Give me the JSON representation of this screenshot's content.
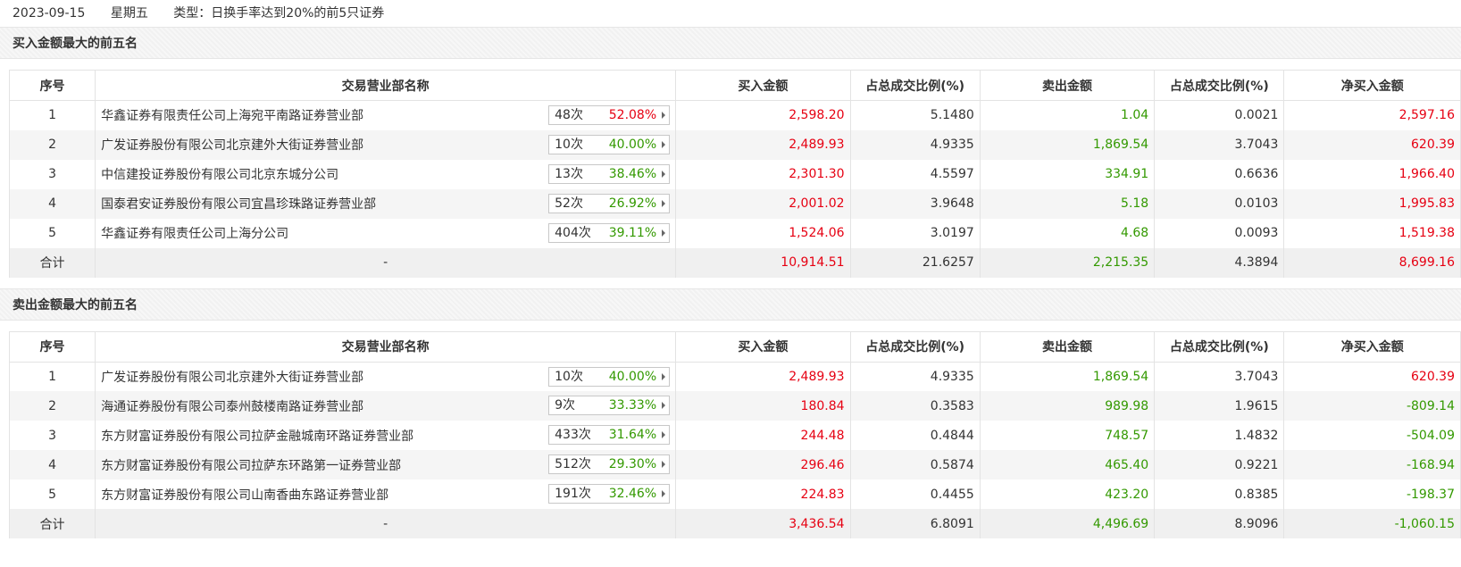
{
  "header": {
    "date": "2023-09-15",
    "weekday": "星期五",
    "type": "类型：日换手率达到20%的前5只证券"
  },
  "columns": [
    "序号",
    "交易营业部名称",
    "买入金额",
    "占总成交比例(%)",
    "卖出金额",
    "占总成交比例(%)",
    "净买入金额"
  ],
  "buy_section": {
    "title": "买入金额最大的前五名",
    "rows": [
      {
        "idx": "1",
        "name": "华鑫证券有限责任公司上海宛平南路证券营业部",
        "count": "48次",
        "pct": "52.08%",
        "pct_color": "red",
        "buy": "2,598.20",
        "buy_ratio": "5.1480",
        "sell": "1.04",
        "sell_ratio": "0.0021",
        "net": "2,597.16",
        "net_color": "red"
      },
      {
        "idx": "2",
        "name": "广发证券股份有限公司北京建外大街证券营业部",
        "count": "10次",
        "pct": "40.00%",
        "pct_color": "green",
        "buy": "2,489.93",
        "buy_ratio": "4.9335",
        "sell": "1,869.54",
        "sell_ratio": "3.7043",
        "net": "620.39",
        "net_color": "red"
      },
      {
        "idx": "3",
        "name": "中信建投证券股份有限公司北京东城分公司",
        "count": "13次",
        "pct": "38.46%",
        "pct_color": "green",
        "buy": "2,301.30",
        "buy_ratio": "4.5597",
        "sell": "334.91",
        "sell_ratio": "0.6636",
        "net": "1,966.40",
        "net_color": "red"
      },
      {
        "idx": "4",
        "name": "国泰君安证券股份有限公司宜昌珍珠路证券营业部",
        "count": "52次",
        "pct": "26.92%",
        "pct_color": "green",
        "buy": "2,001.02",
        "buy_ratio": "3.9648",
        "sell": "5.18",
        "sell_ratio": "0.0103",
        "net": "1,995.83",
        "net_color": "red"
      },
      {
        "idx": "5",
        "name": "华鑫证券有限责任公司上海分公司",
        "count": "404次",
        "pct": "39.11%",
        "pct_color": "green",
        "buy": "1,524.06",
        "buy_ratio": "3.0197",
        "sell": "4.68",
        "sell_ratio": "0.0093",
        "net": "1,519.38",
        "net_color": "red"
      }
    ],
    "total": {
      "label": "合计",
      "name": "-",
      "buy": "10,914.51",
      "buy_ratio": "21.6257",
      "sell": "2,215.35",
      "sell_ratio": "4.3894",
      "net": "8,699.16",
      "net_color": "red"
    }
  },
  "sell_section": {
    "title": "卖出金额最大的前五名",
    "rows": [
      {
        "idx": "1",
        "name": "广发证券股份有限公司北京建外大街证券营业部",
        "count": "10次",
        "pct": "40.00%",
        "pct_color": "green",
        "buy": "2,489.93",
        "buy_ratio": "4.9335",
        "sell": "1,869.54",
        "sell_ratio": "3.7043",
        "net": "620.39",
        "net_color": "red"
      },
      {
        "idx": "2",
        "name": "海通证券股份有限公司泰州鼓楼南路证券营业部",
        "count": "9次",
        "pct": "33.33%",
        "pct_color": "green",
        "buy": "180.84",
        "buy_ratio": "0.3583",
        "sell": "989.98",
        "sell_ratio": "1.9615",
        "net": "-809.14",
        "net_color": "green"
      },
      {
        "idx": "3",
        "name": "东方财富证券股份有限公司拉萨金融城南环路证券营业部",
        "count": "433次",
        "pct": "31.64%",
        "pct_color": "green",
        "buy": "244.48",
        "buy_ratio": "0.4844",
        "sell": "748.57",
        "sell_ratio": "1.4832",
        "net": "-504.09",
        "net_color": "green"
      },
      {
        "idx": "4",
        "name": "东方财富证券股份有限公司拉萨东环路第一证券营业部",
        "count": "512次",
        "pct": "29.30%",
        "pct_color": "green",
        "buy": "296.46",
        "buy_ratio": "0.5874",
        "sell": "465.40",
        "sell_ratio": "0.9221",
        "net": "-168.94",
        "net_color": "green"
      },
      {
        "idx": "5",
        "name": "东方财富证券股份有限公司山南香曲东路证券营业部",
        "count": "191次",
        "pct": "32.46%",
        "pct_color": "green",
        "buy": "224.83",
        "buy_ratio": "0.4455",
        "sell": "423.20",
        "sell_ratio": "0.8385",
        "net": "-198.37",
        "net_color": "green"
      }
    ],
    "total": {
      "label": "合计",
      "name": "-",
      "buy": "3,436.54",
      "buy_ratio": "6.8091",
      "sell": "4,496.69",
      "sell_ratio": "8.9096",
      "net": "-1,060.15",
      "net_color": "green"
    }
  },
  "colors": {
    "red": "#e60012",
    "green": "#339900"
  },
  "icons": {
    "badge_expand": "triangle-right-icon"
  }
}
